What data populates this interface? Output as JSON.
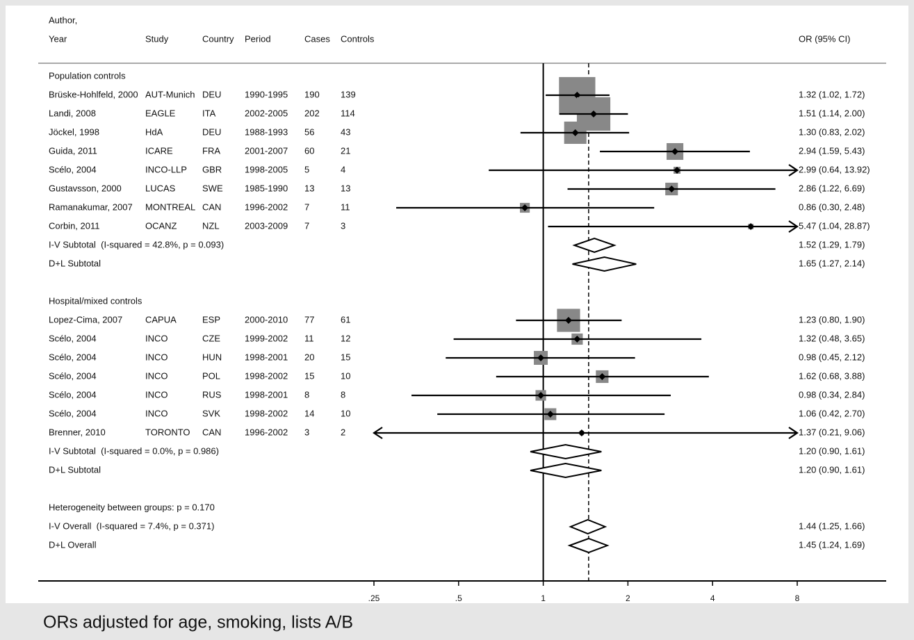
{
  "chart_data": {
    "type": "forest",
    "headers": {
      "author": "Author,",
      "year": "Year",
      "study": "Study",
      "country": "Country",
      "period": "Period",
      "cases": "Cases",
      "controls": "Controls",
      "ci": "OR (95% CI)"
    },
    "xlim": [
      0.25,
      8
    ],
    "xticks": [
      {
        "value": 0.25,
        "label": ".25"
      },
      {
        "value": 0.5,
        "label": ".5"
      },
      1,
      2,
      4,
      8
    ],
    "log_scale": true,
    "box_color": "#888888",
    "groups": [
      {
        "label": "Population controls",
        "studies": [
          {
            "author": "Brüske-Hohlfeld, 2000",
            "study": "AUT-Munich",
            "country": "DEU",
            "period": "1990-1995",
            "cases": 190,
            "controls": 139,
            "or": 1.32,
            "lo": 1.02,
            "hi": 1.72,
            "ci_label": "1.32 (1.02, 1.72)",
            "weight": 27.3
          },
          {
            "author": "Landi, 2008",
            "study": "EAGLE",
            "country": "ITA",
            "period": "2002-2005",
            "cases": 202,
            "controls": 114,
            "or": 1.51,
            "lo": 1.14,
            "hi": 2.0,
            "ci_label": "1.51 (1.14, 2.00)",
            "weight": 23.2
          },
          {
            "author": "Jöckel, 1998",
            "study": "HdA",
            "country": "DEU",
            "period": "1988-1993",
            "cases": 56,
            "controls": 43,
            "or": 1.3,
            "lo": 0.83,
            "hi": 2.02,
            "ci_label": "1.30 (0.83, 2.02)",
            "weight": 10.3
          },
          {
            "author": "Guida, 2011",
            "study": "ICARE",
            "country": "FRA",
            "period": "2001-2007",
            "cases": 60,
            "controls": 21,
            "or": 2.94,
            "lo": 1.59,
            "hi": 5.43,
            "ci_label": "2.94 (1.59, 5.43)",
            "weight": 5.8
          },
          {
            "author": "Scélo, 2004",
            "study": "INCO-LLP",
            "country": "GBR",
            "period": "1998-2005",
            "cases": 5,
            "controls": 4,
            "or": 2.99,
            "lo": 0.64,
            "hi": 13.92,
            "ci_label": "2.99 (0.64, 13.92)",
            "weight": 1.0
          },
          {
            "author": "Gustavsson, 2000",
            "study": "LUCAS",
            "country": "SWE",
            "period": "1985-1990",
            "cases": 13,
            "controls": 13,
            "or": 2.86,
            "lo": 1.22,
            "hi": 6.69,
            "ci_label": "2.86 (1.22, 6.69)",
            "weight": 3.3
          },
          {
            "author": "Ramanakumar, 2007",
            "study": "MONTREAL",
            "country": "CAN",
            "period": "1996-2002",
            "cases": 7,
            "controls": 11,
            "or": 0.86,
            "lo": 0.3,
            "hi": 2.48,
            "ci_label": "0.86 (0.30, 2.48)",
            "weight": 2.0
          },
          {
            "author": "Corbin, 2011",
            "study": "OCANZ",
            "country": "NZL",
            "period": "2003-2009",
            "cases": 7,
            "controls": 3,
            "or": 5.47,
            "lo": 1.04,
            "hi": 28.87,
            "ci_label": "5.47 (1.04, 28.87)",
            "weight": 0.6
          }
        ],
        "subtotals": [
          {
            "label": "I-V Subtotal  (I-squared = 42.8%, p = 0.093)",
            "or": 1.52,
            "lo": 1.29,
            "hi": 1.79,
            "ci_label": "1.52 (1.29, 1.79)"
          },
          {
            "label": "D+L Subtotal",
            "or": 1.65,
            "lo": 1.27,
            "hi": 2.14,
            "ci_label": "1.65 (1.27, 2.14)"
          }
        ]
      },
      {
        "label": "Hospital/mixed controls",
        "studies": [
          {
            "author": "Lopez-Cima, 2007",
            "study": "CAPUA",
            "country": "ESP",
            "period": "2000-2010",
            "cases": 77,
            "controls": 61,
            "or": 1.23,
            "lo": 0.8,
            "hi": 1.9,
            "ci_label": "1.23 (0.80, 1.90)",
            "weight": 11.0
          },
          {
            "author": "Scélo, 2004",
            "study": "INCO",
            "country": "CZE",
            "period": "1999-2002",
            "cases": 11,
            "controls": 12,
            "or": 1.32,
            "lo": 0.48,
            "hi": 3.65,
            "ci_label": "1.32 (0.48, 3.65)",
            "weight": 2.6
          },
          {
            "author": "Scélo, 2004",
            "study": "INCO",
            "country": "HUN",
            "period": "1998-2001",
            "cases": 20,
            "controls": 15,
            "or": 0.98,
            "lo": 0.45,
            "hi": 2.12,
            "ci_label": "0.98 (0.45, 2.12)",
            "weight": 4.0
          },
          {
            "author": "Scélo, 2004",
            "study": "INCO",
            "country": "POL",
            "period": "1998-2002",
            "cases": 15,
            "controls": 10,
            "or": 1.62,
            "lo": 0.68,
            "hi": 3.88,
            "ci_label": "1.62 (0.68, 3.88)",
            "weight": 3.3
          },
          {
            "author": "Scélo, 2004",
            "study": "INCO",
            "country": "RUS",
            "period": "1998-2001",
            "cases": 8,
            "controls": 8,
            "or": 0.98,
            "lo": 0.34,
            "hi": 2.84,
            "ci_label": "0.98 (0.34, 2.84)",
            "weight": 2.3
          },
          {
            "author": "Scélo, 2004",
            "study": "INCO",
            "country": "SVK",
            "period": "1998-2002",
            "cases": 14,
            "controls": 10,
            "or": 1.06,
            "lo": 0.42,
            "hi": 2.7,
            "ci_label": "1.06 (0.42, 2.70)",
            "weight": 2.9
          },
          {
            "author": "Brenner, 2010",
            "study": "TORONTO",
            "country": "CAN",
            "period": "1996-2002",
            "cases": 3,
            "controls": 2,
            "or": 1.37,
            "lo": 0.21,
            "hi": 9.06,
            "ci_label": "1.37 (0.21, 9.06)",
            "weight": 0.4
          }
        ],
        "subtotals": [
          {
            "label": "I-V Subtotal  (I-squared = 0.0%, p = 0.986)",
            "or": 1.2,
            "lo": 0.9,
            "hi": 1.61,
            "ci_label": "1.20 (0.90, 1.61)"
          },
          {
            "label": "D+L Subtotal",
            "or": 1.2,
            "lo": 0.9,
            "hi": 1.61,
            "ci_label": "1.20 (0.90, 1.61)"
          }
        ]
      }
    ],
    "heterogeneity": "Heterogeneity between groups: p = 0.170",
    "overall": [
      {
        "label": "I-V Overall  (I-squared = 7.4%, p = 0.371)",
        "or": 1.44,
        "lo": 1.25,
        "hi": 1.66,
        "ci_label": "1.44 (1.25, 1.66)"
      },
      {
        "label": "D+L Overall",
        "or": 1.45,
        "lo": 1.24,
        "hi": 1.69,
        "ci_label": "1.45 (1.24, 1.69)"
      }
    ],
    "footnote": "ORs adjusted for age, smoking, lists A/B"
  }
}
